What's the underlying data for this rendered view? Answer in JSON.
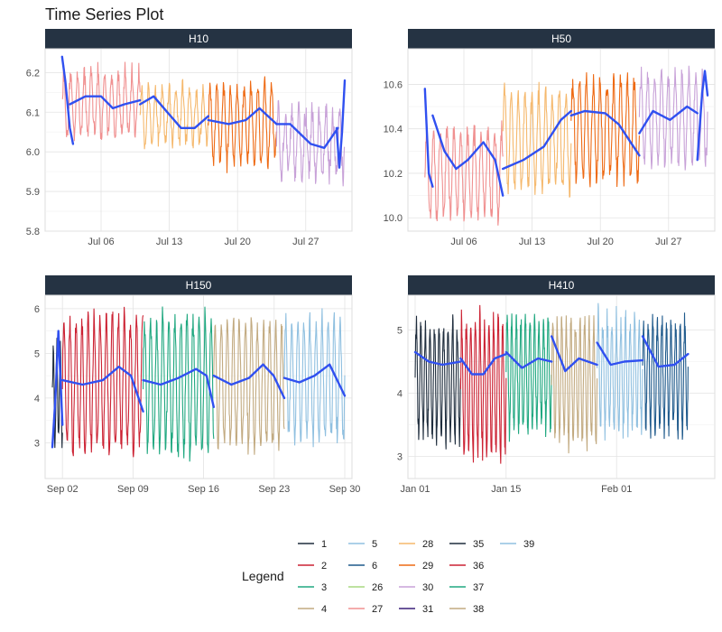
{
  "title": "Time Series Plot",
  "chart_data": {
    "type": "line",
    "title": "Time Series Plot",
    "xlabel": "",
    "ylabel": "",
    "grid": true,
    "legend_position": "bottom",
    "legend_title": "Legend",
    "colors": {
      "1": "#1f2d3d",
      "2": "#cc2233",
      "3": "#20a880",
      "4": "#c2aa80",
      "5": "#90c0e0",
      "6": "#1f5a8c",
      "26": "#a8d880",
      "27": "#f09090",
      "28": "#f5b86c",
      "29": "#ee6a14",
      "30": "#c8a2d8",
      "31": "#3a1e78",
      "35": "#1f2d3d",
      "36": "#cc2233",
      "37": "#20a880",
      "38": "#c2aa80",
      "39": "#90c0e0",
      "smooth": "#3050f0",
      "strip": "#253343"
    },
    "legend": {
      "columns": [
        [
          "1",
          "2",
          "3",
          "4"
        ],
        [
          "5",
          "6",
          "26",
          "27"
        ],
        [
          "28",
          "29",
          "30",
          "31"
        ],
        [
          "35",
          "36",
          "37",
          "38"
        ],
        [
          "39"
        ]
      ]
    },
    "panels": [
      {
        "name": "H10",
        "x_type": "date",
        "x_range": [
          "2015-07-01",
          "2015-07-31"
        ],
        "x_ticks": [
          {
            "date": "2015-07-06",
            "label": "Jul 06"
          },
          {
            "date": "2015-07-13",
            "label": "Jul 13"
          },
          {
            "date": "2015-07-20",
            "label": "Jul 20"
          },
          {
            "date": "2015-07-27",
            "label": "Jul 27"
          }
        ],
        "ylim": [
          5.8,
          6.26
        ],
        "y_ticks": [
          5.8,
          5.9,
          6.0,
          6.1,
          6.2
        ],
        "series": [
          {
            "name": "27",
            "start": "2015-07-02",
            "end": "2015-07-10",
            "center": 6.12,
            "amp": 0.09,
            "period": 0.7,
            "noise": 0.02
          },
          {
            "name": "28",
            "start": "2015-07-10",
            "end": "2015-07-17",
            "center": 6.09,
            "amp": 0.08,
            "period": 0.7,
            "noise": 0.02
          },
          {
            "name": "29",
            "start": "2015-07-17",
            "end": "2015-07-24",
            "center": 6.07,
            "amp": 0.11,
            "period": 0.7,
            "noise": 0.02
          },
          {
            "name": "30",
            "start": "2015-07-24",
            "end": "2015-07-31",
            "center": 6.02,
            "amp": 0.09,
            "period": 0.7,
            "noise": 0.03
          }
        ],
        "smooth": [
          {
            "start": "2015-07-02",
            "end": "2015-07-10",
            "values": [
              [
                0,
                6.24
              ],
              [
                0.04,
                6.18
              ],
              [
                0.1,
                6.06
              ],
              [
                0.14,
                6.02
              ]
            ],
            "main": [
              [
                0.1,
                6.12
              ],
              [
                0.3,
                6.14
              ],
              [
                0.5,
                6.14
              ],
              [
                0.65,
                6.11
              ],
              [
                0.8,
                6.12
              ],
              [
                1,
                6.13
              ]
            ]
          },
          {
            "start": "2015-07-10",
            "end": "2015-07-17",
            "values": [],
            "main": [
              [
                0,
                6.12
              ],
              [
                0.2,
                6.14
              ],
              [
                0.4,
                6.1
              ],
              [
                0.6,
                6.06
              ],
              [
                0.8,
                6.06
              ],
              [
                1,
                6.09
              ]
            ]
          },
          {
            "start": "2015-07-17",
            "end": "2015-07-24",
            "values": [],
            "main": [
              [
                0,
                6.08
              ],
              [
                0.3,
                6.07
              ],
              [
                0.55,
                6.08
              ],
              [
                0.75,
                6.11
              ],
              [
                1,
                6.07
              ]
            ]
          },
          {
            "start": "2015-07-24",
            "end": "2015-07-31",
            "values": [
              [
                0.88,
                6.06
              ],
              [
                0.92,
                5.96
              ],
              [
                0.96,
                6.05
              ],
              [
                1,
                6.18
              ]
            ],
            "main": [
              [
                0,
                6.07
              ],
              [
                0.2,
                6.07
              ],
              [
                0.5,
                6.02
              ],
              [
                0.7,
                6.01
              ],
              [
                0.9,
                6.06
              ]
            ]
          }
        ]
      },
      {
        "name": "H50",
        "x_type": "date",
        "x_range": [
          "2015-07-01",
          "2015-07-31"
        ],
        "x_ticks": [
          {
            "date": "2015-07-06",
            "label": "Jul 06"
          },
          {
            "date": "2015-07-13",
            "label": "Jul 13"
          },
          {
            "date": "2015-07-20",
            "label": "Jul 20"
          },
          {
            "date": "2015-07-27",
            "label": "Jul 27"
          }
        ],
        "ylim": [
          9.94,
          10.76
        ],
        "y_ticks": [
          10.0,
          10.2,
          10.4,
          10.6
        ],
        "series": [
          {
            "name": "27",
            "start": "2015-07-02",
            "end": "2015-07-10",
            "center": 10.2,
            "amp": 0.22,
            "period": 0.7,
            "noise": 0.04
          },
          {
            "name": "28",
            "start": "2015-07-10",
            "end": "2015-07-17",
            "center": 10.35,
            "amp": 0.25,
            "period": 0.7,
            "noise": 0.04
          },
          {
            "name": "29",
            "start": "2015-07-17",
            "end": "2015-07-24",
            "center": 10.4,
            "amp": 0.25,
            "period": 0.7,
            "noise": 0.04
          },
          {
            "name": "30",
            "start": "2015-07-24",
            "end": "2015-07-31",
            "center": 10.45,
            "amp": 0.22,
            "period": 0.7,
            "noise": 0.04
          }
        ],
        "smooth": [
          {
            "start": "2015-07-02",
            "end": "2015-07-10",
            "values": [
              [
                0,
                10.58
              ],
              [
                0.05,
                10.2
              ],
              [
                0.1,
                10.14
              ]
            ],
            "main": [
              [
                0.1,
                10.46
              ],
              [
                0.25,
                10.3
              ],
              [
                0.4,
                10.22
              ],
              [
                0.55,
                10.26
              ],
              [
                0.75,
                10.34
              ],
              [
                0.9,
                10.26
              ],
              [
                1,
                10.1
              ]
            ]
          },
          {
            "start": "2015-07-10",
            "end": "2015-07-17",
            "values": [],
            "main": [
              [
                0,
                10.22
              ],
              [
                0.3,
                10.26
              ],
              [
                0.6,
                10.32
              ],
              [
                0.85,
                10.44
              ],
              [
                1,
                10.48
              ]
            ]
          },
          {
            "start": "2015-07-17",
            "end": "2015-07-24",
            "values": [],
            "main": [
              [
                0,
                10.46
              ],
              [
                0.2,
                10.48
              ],
              [
                0.5,
                10.47
              ],
              [
                0.7,
                10.42
              ],
              [
                1,
                10.28
              ]
            ]
          },
          {
            "start": "2015-07-24",
            "end": "2015-07-31",
            "values": [
              [
                0.85,
                10.26
              ],
              [
                0.92,
                10.56
              ],
              [
                0.96,
                10.66
              ],
              [
                1,
                10.55
              ]
            ],
            "main": [
              [
                0,
                10.38
              ],
              [
                0.2,
                10.48
              ],
              [
                0.45,
                10.44
              ],
              [
                0.7,
                10.5
              ],
              [
                0.85,
                10.47
              ]
            ]
          }
        ]
      },
      {
        "name": "H150",
        "x_type": "date",
        "x_range": [
          "2015-09-01",
          "2015-09-30"
        ],
        "x_ticks": [
          {
            "date": "2015-09-02",
            "label": "Sep 02"
          },
          {
            "date": "2015-09-09",
            "label": "Sep 09"
          },
          {
            "date": "2015-09-16",
            "label": "Sep 16"
          },
          {
            "date": "2015-09-23",
            "label": "Sep 23"
          },
          {
            "date": "2015-09-30",
            "label": "Sep 30"
          }
        ],
        "ylim": [
          2.2,
          6.3
        ],
        "y_ticks": [
          3,
          4,
          5,
          6
        ],
        "series": [
          {
            "name": "1",
            "start": "2015-09-01",
            "end": "2015-09-02",
            "center": 4.0,
            "amp": 1.2,
            "period": 0.35,
            "noise": 0.3
          },
          {
            "name": "36",
            "start": "2015-09-02",
            "end": "2015-09-10",
            "center": 4.3,
            "amp": 1.7,
            "period": 0.6,
            "noise": 0.2
          },
          {
            "name": "37",
            "start": "2015-09-10",
            "end": "2015-09-17",
            "center": 4.3,
            "amp": 1.7,
            "period": 0.6,
            "noise": 0.2
          },
          {
            "name": "38",
            "start": "2015-09-17",
            "end": "2015-09-24",
            "center": 4.3,
            "amp": 1.6,
            "period": 0.6,
            "noise": 0.2
          },
          {
            "name": "39",
            "start": "2015-09-24",
            "end": "2015-09-30",
            "center": 4.4,
            "amp": 1.5,
            "period": 0.6,
            "noise": 0.2
          }
        ],
        "smooth": [
          {
            "start": "2015-09-01",
            "end": "2015-09-02",
            "values": [],
            "main": [
              [
                0,
                2.9
              ],
              [
                0.3,
                4.0
              ],
              [
                0.6,
                5.5
              ],
              [
                1,
                3.4
              ]
            ]
          },
          {
            "start": "2015-09-02",
            "end": "2015-09-10",
            "values": [],
            "main": [
              [
                0,
                4.4
              ],
              [
                0.25,
                4.3
              ],
              [
                0.5,
                4.4
              ],
              [
                0.7,
                4.7
              ],
              [
                0.85,
                4.5
              ],
              [
                1,
                3.7
              ]
            ]
          },
          {
            "start": "2015-09-10",
            "end": "2015-09-17",
            "values": [],
            "main": [
              [
                0,
                4.4
              ],
              [
                0.25,
                4.3
              ],
              [
                0.5,
                4.45
              ],
              [
                0.75,
                4.65
              ],
              [
                0.9,
                4.5
              ],
              [
                1,
                3.8
              ]
            ]
          },
          {
            "start": "2015-09-17",
            "end": "2015-09-24",
            "values": [],
            "main": [
              [
                0,
                4.5
              ],
              [
                0.25,
                4.3
              ],
              [
                0.5,
                4.45
              ],
              [
                0.7,
                4.75
              ],
              [
                0.85,
                4.5
              ],
              [
                1,
                4.0
              ]
            ]
          },
          {
            "start": "2015-09-24",
            "end": "2015-09-30",
            "values": [],
            "main": [
              [
                0,
                4.45
              ],
              [
                0.25,
                4.35
              ],
              [
                0.5,
                4.5
              ],
              [
                0.75,
                4.75
              ],
              [
                1,
                4.05
              ]
            ]
          }
        ]
      },
      {
        "name": "H410",
        "x_type": "date",
        "x_range": [
          "2016-01-01",
          "2016-02-15"
        ],
        "x_ticks": [
          {
            "date": "2016-01-01",
            "label": "Jan 01"
          },
          {
            "date": "2016-01-15",
            "label": "Jan 15"
          },
          {
            "date": "2016-02-01",
            "label": "Feb 01"
          }
        ],
        "ylim": [
          2.65,
          5.55
        ],
        "y_ticks": [
          3,
          4,
          5
        ],
        "series": [
          {
            "name": "35",
            "start": "2016-01-01",
            "end": "2016-01-08",
            "center": 4.2,
            "amp": 1.0,
            "period": 0.7,
            "noise": 0.15
          },
          {
            "name": "36",
            "start": "2016-01-08",
            "end": "2016-01-15",
            "center": 4.1,
            "amp": 1.2,
            "period": 0.7,
            "noise": 0.15
          },
          {
            "name": "37",
            "start": "2016-01-15",
            "end": "2016-01-22",
            "center": 4.3,
            "amp": 1.0,
            "period": 0.7,
            "noise": 0.15
          },
          {
            "name": "38",
            "start": "2016-01-22",
            "end": "2016-01-29",
            "center": 4.2,
            "amp": 1.1,
            "period": 0.7,
            "noise": 0.15
          },
          {
            "name": "39",
            "start": "2016-01-29",
            "end": "2016-02-05",
            "center": 4.3,
            "amp": 1.0,
            "period": 0.7,
            "noise": 0.15
          },
          {
            "name": "6",
            "start": "2016-02-05",
            "end": "2016-02-12",
            "center": 4.3,
            "amp": 1.0,
            "period": 0.7,
            "noise": 0.15
          }
        ],
        "smooth": [
          {
            "start": "2016-01-01",
            "end": "2016-01-08",
            "values": [],
            "main": [
              [
                0,
                4.65
              ],
              [
                0.3,
                4.5
              ],
              [
                0.6,
                4.45
              ],
              [
                1,
                4.5
              ]
            ]
          },
          {
            "start": "2016-01-08",
            "end": "2016-01-15",
            "values": [],
            "main": [
              [
                0,
                4.55
              ],
              [
                0.25,
                4.3
              ],
              [
                0.5,
                4.3
              ],
              [
                0.75,
                4.55
              ],
              [
                1,
                4.62
              ]
            ]
          },
          {
            "start": "2016-01-15",
            "end": "2016-01-22",
            "values": [],
            "main": [
              [
                0,
                4.65
              ],
              [
                0.35,
                4.4
              ],
              [
                0.7,
                4.55
              ],
              [
                1,
                4.5
              ]
            ]
          },
          {
            "start": "2016-01-22",
            "end": "2016-01-29",
            "values": [],
            "main": [
              [
                0,
                4.9
              ],
              [
                0.3,
                4.35
              ],
              [
                0.6,
                4.55
              ],
              [
                1,
                4.45
              ]
            ]
          },
          {
            "start": "2016-01-29",
            "end": "2016-02-05",
            "values": [],
            "main": [
              [
                0,
                4.8
              ],
              [
                0.3,
                4.45
              ],
              [
                0.6,
                4.5
              ],
              [
                1,
                4.52
              ]
            ]
          },
          {
            "start": "2016-02-05",
            "end": "2016-02-12",
            "values": [],
            "main": [
              [
                0,
                4.9
              ],
              [
                0.35,
                4.42
              ],
              [
                0.7,
                4.45
              ],
              [
                1,
                4.62
              ]
            ]
          }
        ]
      }
    ]
  }
}
